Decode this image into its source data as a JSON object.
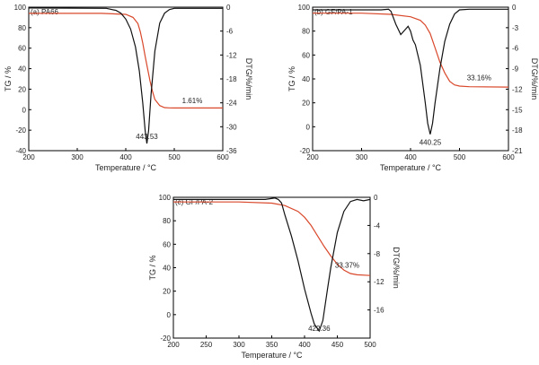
{
  "chart_data": [
    {
      "type": "line",
      "title": "(a) PA66",
      "xlabel": "Temperature / °C",
      "ylabel": "TG / %",
      "y2label": "DTG/%/min",
      "xlim": [
        200,
        600
      ],
      "ylim": [
        -40,
        100
      ],
      "y2lim": [
        -36,
        0
      ],
      "xticks": [
        "200",
        "300",
        "400",
        "500",
        "600"
      ],
      "yticks": [
        "100",
        "80",
        "60",
        "40",
        "20",
        "0",
        "-20",
        "-40"
      ],
      "y2ticks": [
        "0",
        "-6",
        "-12",
        "-18",
        "-24",
        "-30",
        "-36"
      ],
      "grid": false,
      "legend": "none",
      "annotations": [
        {
          "text": "443.53",
          "x": 443.53,
          "y": -28.5
        },
        {
          "text": "1.61%",
          "x": 537,
          "y": 6.5
        }
      ],
      "series": [
        {
          "axis": "left",
          "color": "#d9482b",
          "x": [
            200,
            350,
            400,
            415,
            425,
            430,
            435,
            440,
            445,
            450,
            455,
            460,
            470,
            480,
            490,
            500,
            600
          ],
          "y": [
            94,
            94,
            93,
            90,
            84,
            76,
            65,
            52,
            40,
            28,
            18,
            10,
            4,
            2,
            1.7,
            1.61,
            1.61
          ]
        },
        {
          "axis": "right",
          "color": "#111111",
          "x": [
            200,
            360,
            380,
            390,
            400,
            410,
            420,
            428,
            435,
            440,
            443.53,
            447,
            452,
            460,
            470,
            480,
            490,
            500,
            600
          ],
          "y": [
            -0.2,
            -0.3,
            -0.8,
            -1.5,
            -3,
            -5.5,
            -10,
            -16,
            -24,
            -31,
            -34.2,
            -31,
            -22,
            -11,
            -4,
            -1.5,
            -0.6,
            -0.3,
            -0.3
          ]
        }
      ]
    },
    {
      "type": "line",
      "title": "(b) GF/PA-1",
      "xlabel": "Temperature / °C",
      "ylabel": "TG / %",
      "y2label": "DTG/%/min",
      "xlim": [
        200,
        600
      ],
      "ylim": [
        -20,
        100
      ],
      "y2lim": [
        -21,
        0
      ],
      "xticks": [
        "200",
        "300",
        "400",
        "500",
        "600"
      ],
      "yticks": [
        "100",
        "80",
        "60",
        "40",
        "20",
        "0",
        "-20"
      ],
      "y2ticks": [
        "0",
        "-3",
        "-6",
        "-9",
        "-12",
        "-15",
        "-18",
        "-21"
      ],
      "grid": false,
      "legend": "none",
      "annotations": [
        {
          "text": "440.25",
          "x": 440.25,
          "y": -15
        },
        {
          "text": "33.16%",
          "x": 540,
          "y": 39
        }
      ],
      "series": [
        {
          "axis": "left",
          "color": "#d9482b",
          "x": [
            200,
            300,
            360,
            400,
            420,
            430,
            440,
            450,
            460,
            470,
            480,
            490,
            500,
            520,
            600
          ],
          "y": [
            95,
            95,
            94,
            92,
            89,
            85,
            78,
            66,
            54,
            45,
            38,
            35,
            34,
            33.5,
            33.16
          ]
        },
        {
          "axis": "right",
          "color": "#111111",
          "x": [
            200,
            340,
            355,
            360,
            370,
            380,
            390,
            395,
            400,
            405,
            410,
            420,
            430,
            435,
            440.25,
            445,
            450,
            460,
            470,
            480,
            490,
            500,
            520,
            600
          ],
          "y": [
            -0.4,
            -0.4,
            -0.3,
            -0.6,
            -2.5,
            -4,
            -3.2,
            -2.8,
            -3.5,
            -4.8,
            -5.5,
            -8.5,
            -14,
            -17,
            -18.6,
            -17,
            -14,
            -9,
            -5,
            -2.5,
            -1,
            -0.4,
            -0.3,
            -0.3
          ]
        }
      ]
    },
    {
      "type": "line",
      "title": "(c) GF/PA-2",
      "xlabel": "Temperature / °C",
      "ylabel": "TG / %",
      "y2label": "DTG/%/min",
      "xlim": [
        200,
        500
      ],
      "ylim": [
        -20,
        100
      ],
      "y2lim": [
        -20,
        0
      ],
      "xticks": [
        "200",
        "250",
        "300",
        "350",
        "400",
        "450",
        "500"
      ],
      "yticks": [
        "100",
        "80",
        "60",
        "40",
        "20",
        "0",
        "-20"
      ],
      "y2ticks": [
        "0",
        "-4",
        "-8",
        "-12",
        "-16"
      ],
      "grid": false,
      "legend": "none",
      "annotations": [
        {
          "text": "422.36",
          "x": 422.36,
          "y": -14
        },
        {
          "text": "33.37%",
          "x": 465,
          "y": 40
        }
      ],
      "series": [
        {
          "axis": "left",
          "color": "#d9482b",
          "x": [
            200,
            300,
            350,
            370,
            390,
            400,
            410,
            420,
            430,
            440,
            450,
            460,
            470,
            480,
            500
          ],
          "y": [
            96,
            96,
            95,
            93,
            88,
            83,
            76,
            67,
            58,
            50,
            43,
            38,
            35,
            34,
            33.37
          ]
        },
        {
          "axis": "right",
          "color": "#111111",
          "x": [
            200,
            340,
            355,
            360,
            365,
            370,
            380,
            390,
            400,
            410,
            415,
            422.36,
            428,
            435,
            440,
            450,
            460,
            470,
            480,
            490,
            500
          ],
          "y": [
            -0.3,
            -0.3,
            -0.1,
            -0.3,
            -0.8,
            -2.5,
            -5.5,
            -9,
            -13,
            -16.5,
            -18,
            -19,
            -17.5,
            -13,
            -10,
            -5,
            -2,
            -0.6,
            -0.3,
            -0.5,
            -0.3
          ]
        }
      ]
    }
  ]
}
